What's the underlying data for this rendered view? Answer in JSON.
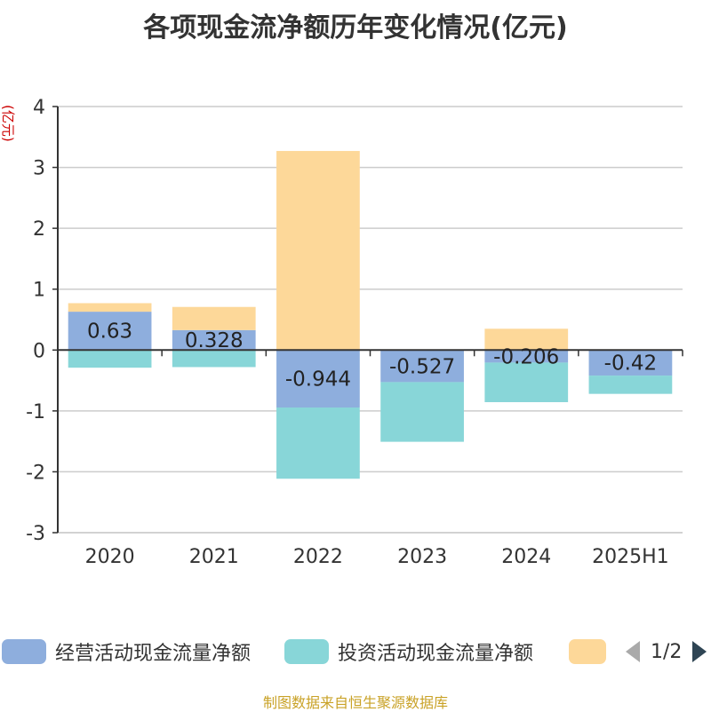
{
  "title": "各项现金流净额历年变化情况(亿元)",
  "source": "制图数据来自恒生聚源数据库",
  "legend_pager": "1/2",
  "chart_data": {
    "type": "bar",
    "stacked": true,
    "categories": [
      "2020",
      "2021",
      "2022",
      "2023",
      "2024",
      "2025H1"
    ],
    "ylabel": "(亿元)",
    "ylim": [
      -3,
      4
    ],
    "yticks": [
      "4",
      "3",
      "2",
      "1",
      "0",
      "-1",
      "-2",
      "-3"
    ],
    "grid": true,
    "legend_position": "bottom",
    "series": [
      {
        "name": "经营活动现金流量净额",
        "color": "#8eaedd",
        "values": [
          0.63,
          0.328,
          -0.944,
          -0.527,
          -0.206,
          -0.42
        ],
        "labels": [
          "0.63",
          "0.328",
          "-0.944",
          "-0.527",
          "-0.206",
          "-0.42"
        ]
      },
      {
        "name": "投资活动现金流量净额",
        "color": "#88d6d8",
        "values": [
          -0.29,
          -0.28,
          -1.17,
          -0.98,
          -0.65,
          -0.3
        ]
      },
      {
        "name": "",
        "color": "#fdd899",
        "values": [
          0.14,
          0.38,
          3.27,
          0,
          0.35,
          0
        ]
      }
    ]
  }
}
